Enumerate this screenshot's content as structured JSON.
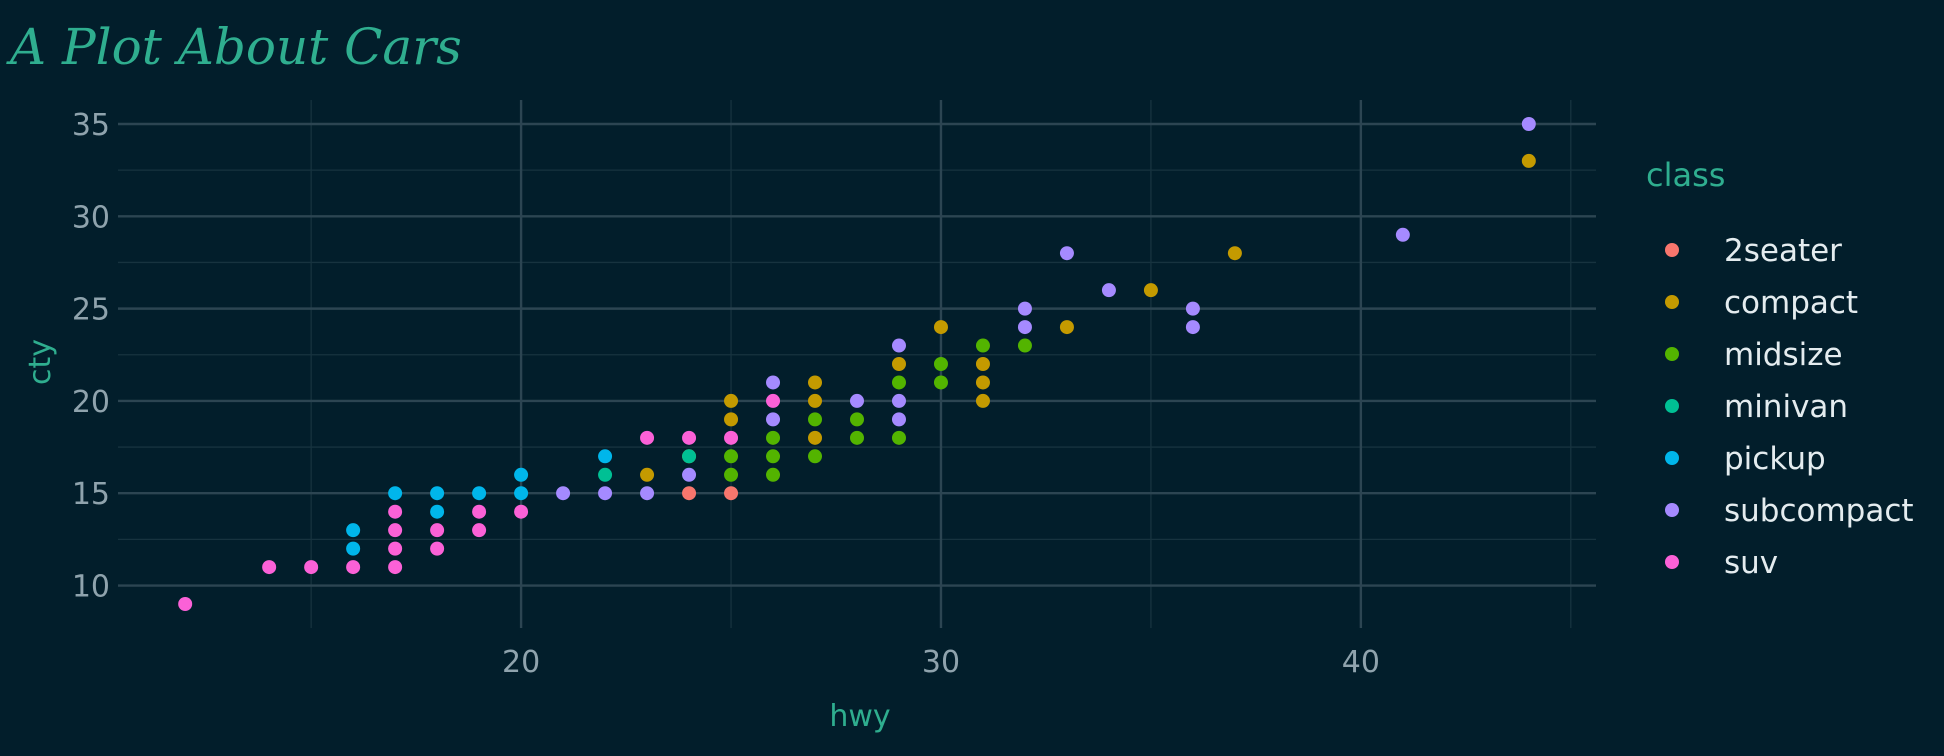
{
  "chart_data": {
    "type": "scatter",
    "title": "A Plot About Cars",
    "xlabel": "hwy",
    "ylabel": "cty",
    "xlim": [
      10.4,
      45.6
    ],
    "ylim": [
      7.7,
      36.3
    ],
    "x_ticks": [
      20,
      30,
      40
    ],
    "y_ticks": [
      10,
      15,
      20,
      25,
      30,
      35
    ],
    "grid": true,
    "legend": {
      "title": "class",
      "position": "right"
    },
    "series": [
      {
        "name": "2seater",
        "color": "#f8766d",
        "points": [
          [
            24,
            15
          ],
          [
            25,
            15
          ]
        ]
      },
      {
        "name": "compact",
        "color": "#c49a00",
        "points": [
          [
            23,
            16
          ],
          [
            24,
            17
          ],
          [
            25,
            19
          ],
          [
            25,
            20
          ],
          [
            27,
            21
          ],
          [
            27,
            20
          ],
          [
            27,
            18
          ],
          [
            29,
            22
          ],
          [
            30,
            24
          ],
          [
            31,
            22
          ],
          [
            31,
            21
          ],
          [
            31,
            20
          ],
          [
            33,
            24
          ],
          [
            35,
            26
          ],
          [
            37,
            28
          ],
          [
            44,
            33
          ]
        ]
      },
      {
        "name": "midsize",
        "color": "#53b400",
        "points": [
          [
            25,
            16
          ],
          [
            25,
            17
          ],
          [
            26,
            16
          ],
          [
            26,
            17
          ],
          [
            26,
            18
          ],
          [
            27,
            17
          ],
          [
            27,
            19
          ],
          [
            28,
            18
          ],
          [
            28,
            19
          ],
          [
            29,
            18
          ],
          [
            29,
            21
          ],
          [
            30,
            21
          ],
          [
            30,
            22
          ],
          [
            31,
            23
          ],
          [
            32,
            23
          ]
        ]
      },
      {
        "name": "minivan",
        "color": "#00c094",
        "points": [
          [
            22,
            16
          ],
          [
            24,
            17
          ]
        ]
      },
      {
        "name": "pickup",
        "color": "#00b6eb",
        "points": [
          [
            16,
            12
          ],
          [
            16,
            13
          ],
          [
            17,
            15
          ],
          [
            18,
            14
          ],
          [
            18,
            15
          ],
          [
            19,
            15
          ],
          [
            20,
            15
          ],
          [
            20,
            16
          ],
          [
            22,
            17
          ]
        ]
      },
      {
        "name": "subcompact",
        "color": "#a58aff",
        "points": [
          [
            21,
            15
          ],
          [
            22,
            15
          ],
          [
            23,
            15
          ],
          [
            24,
            16
          ],
          [
            26,
            19
          ],
          [
            26,
            21
          ],
          [
            28,
            20
          ],
          [
            29,
            19
          ],
          [
            29,
            20
          ],
          [
            29,
            23
          ],
          [
            32,
            24
          ],
          [
            32,
            25
          ],
          [
            33,
            28
          ],
          [
            34,
            26
          ],
          [
            36,
            24
          ],
          [
            36,
            25
          ],
          [
            41,
            29
          ],
          [
            44,
            35
          ]
        ]
      },
      {
        "name": "suv",
        "color": "#fb61d7",
        "points": [
          [
            12,
            9
          ],
          [
            14,
            11
          ],
          [
            15,
            11
          ],
          [
            16,
            11
          ],
          [
            17,
            11
          ],
          [
            17,
            12
          ],
          [
            17,
            13
          ],
          [
            17,
            14
          ],
          [
            18,
            12
          ],
          [
            18,
            13
          ],
          [
            19,
            13
          ],
          [
            19,
            14
          ],
          [
            20,
            14
          ],
          [
            23,
            18
          ],
          [
            24,
            18
          ],
          [
            25,
            18
          ],
          [
            26,
            20
          ]
        ]
      }
    ]
  }
}
